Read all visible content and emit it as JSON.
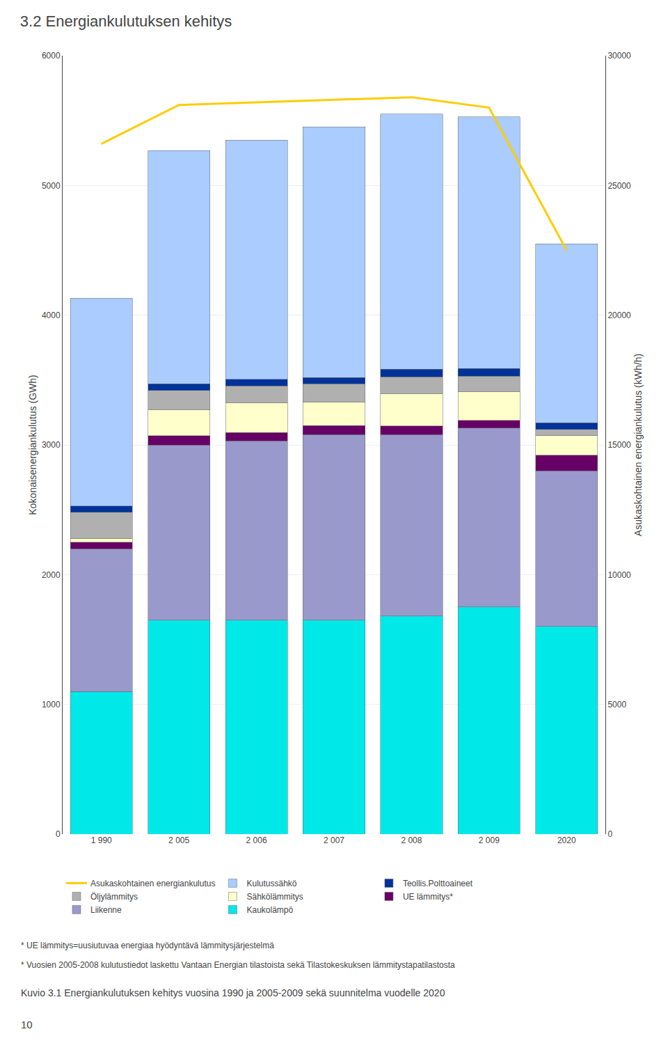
{
  "chart_data": {
    "type": "bar",
    "title": "3.2 Energiankulutuksen kehitys",
    "categories": [
      "1 990",
      "2 005",
      "2 006",
      "2 007",
      "2 008",
      "2 009",
      "2020"
    ],
    "series": [
      {
        "name": "Kaukolämpö",
        "color": "#00e8e8",
        "values": [
          1100,
          1650,
          1650,
          1650,
          1680,
          1750,
          1600
        ]
      },
      {
        "name": "Liikenne",
        "color": "#9999cc",
        "values": [
          1100,
          1350,
          1380,
          1430,
          1400,
          1380,
          1200
        ]
      },
      {
        "name": "UE lämmitys*",
        "color": "#660066",
        "values": [
          50,
          70,
          65,
          70,
          65,
          60,
          120
        ]
      },
      {
        "name": "Sähkölämmitys",
        "color": "#ffffcc",
        "values": [
          30,
          200,
          230,
          180,
          250,
          220,
          150
        ]
      },
      {
        "name": "Öljylämmitys",
        "color": "#b0b0b0",
        "values": [
          200,
          150,
          130,
          140,
          130,
          120,
          50
        ]
      },
      {
        "name": "Teollis.Polttoaineet",
        "color": "#003399",
        "values": [
          50,
          50,
          50,
          50,
          60,
          60,
          50
        ]
      },
      {
        "name": "Kulutussähkö",
        "color": "#aaccff",
        "values": [
          1600,
          1800,
          1845,
          1930,
          1965,
          1940,
          1380
        ]
      },
      {
        "name": "Asukaskohtainen energiankulutus",
        "type": "line",
        "axis": "y2",
        "color": "#ffcc00",
        "values": [
          26600,
          28100,
          28200,
          28300,
          28400,
          28000,
          22500
        ]
      }
    ],
    "stacked": true,
    "ylabel": "Kokonaisenergiankulutus (GWh)",
    "y2label": "Asukaskohtainen energiankulutus (kWh/h)",
    "ylim": [
      0,
      6000
    ],
    "yticks": [
      0,
      1000,
      2000,
      3000,
      4000,
      5000,
      6000
    ],
    "y2lim": [
      0,
      30000
    ],
    "y2ticks": [
      0,
      5000,
      10000,
      15000,
      20000,
      25000,
      30000
    ],
    "grid": true,
    "legend": "bottom",
    "annotations": [
      "* UE lämmitys=uusiutuvaa energiaa hyödyntävä lämmitysjärjestelmä",
      "* Vuosien 2005-2008 kulutustiedot laskettu Vantaan Energian tilastoista sekä Tilastokeskuksen lämmitystapatilastosta",
      "Kuvio 3.1 Energiankulutuksen kehitys vuosina 1990 ja 2005-2009 sekä suunnitelma vuodelle 2020",
      "10"
    ]
  }
}
